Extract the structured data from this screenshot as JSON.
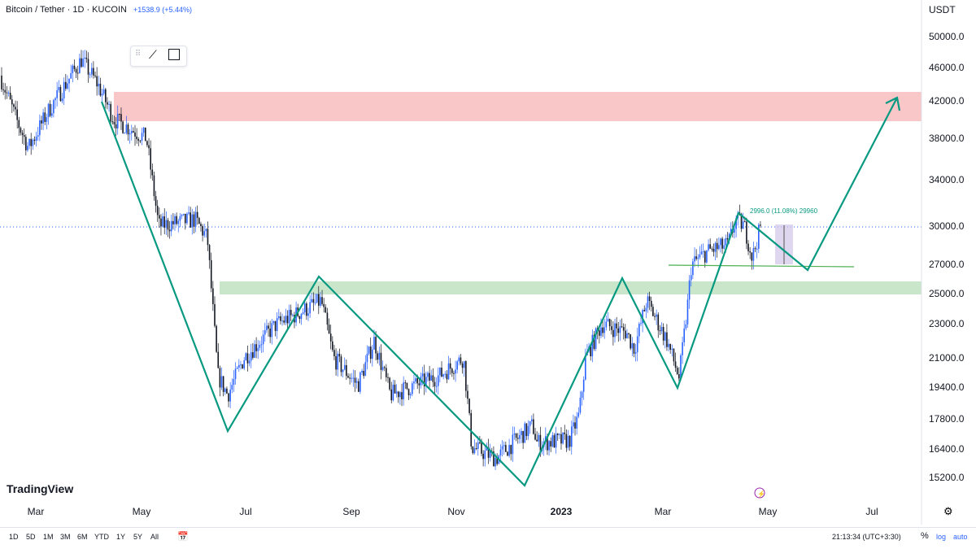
{
  "header": {
    "title": "Bitcoin / Tether · 1D · KUCOIN",
    "change": "+1538.9 (+5.44%)",
    "currency": "USDT"
  },
  "price_axis": [
    "50000.0",
    "46000.0",
    "42000.0",
    "38000.0",
    "34000.0",
    "30000.0",
    "27000.0",
    "25000.0",
    "23000.0",
    "21000.0",
    "19400.0",
    "17800.0",
    "16400.0",
    "15200.0"
  ],
  "time_axis": [
    "Mar",
    "May",
    "Jul",
    "Sep",
    "Nov",
    "2023",
    "Mar",
    "May",
    "Jul"
  ],
  "measurement": "2996.0 (11.08%) 29960",
  "logo": "TradingView",
  "ranges": [
    "1D",
    "5D",
    "1M",
    "3M",
    "6M",
    "YTD",
    "1Y",
    "5Y",
    "All"
  ],
  "clock": "21:13:34 (UTC+3:30)",
  "scale": {
    "percent": "%",
    "log": "log",
    "auto": "auto"
  },
  "colors": {
    "up": "#2962ff",
    "down": "#131722",
    "pattern": "#089981",
    "resistance": "#f7a1a5",
    "support": "#a5d6a7"
  }
}
